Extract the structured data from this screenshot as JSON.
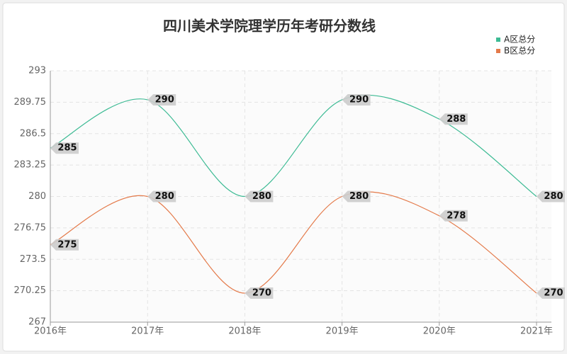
{
  "chart_data": {
    "type": "line",
    "title": "四川美术学院理学历年考研分数线",
    "categories": [
      "2016年",
      "2017年",
      "2018年",
      "2019年",
      "2020年",
      "2021年"
    ],
    "series": [
      {
        "name": "A区总分",
        "color": "#3dbb94",
        "values": [
          285,
          290,
          280,
          290,
          288,
          280
        ]
      },
      {
        "name": "B区总分",
        "color": "#e47a4a",
        "values": [
          275,
          280,
          270,
          280,
          278,
          270
        ]
      }
    ],
    "ylim": [
      267,
      293
    ],
    "yticks": [
      267,
      270.25,
      273.5,
      276.75,
      280,
      283.25,
      286.5,
      289.75,
      293
    ],
    "grid": true,
    "legend": "top-right"
  }
}
